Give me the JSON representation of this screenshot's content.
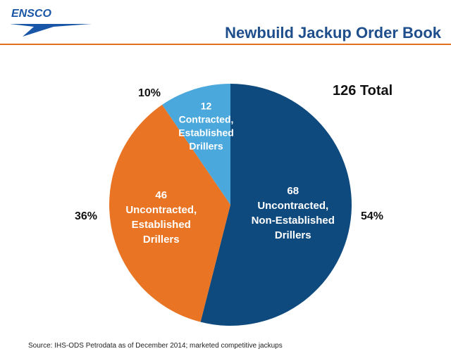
{
  "header": {
    "logo_text": "ENSCO",
    "title": "Newbuild Jackup Order Book"
  },
  "colors": {
    "accent_orange": "#e07020",
    "title_blue": "#1f4e8c",
    "logo_blue": "#1a56a8"
  },
  "chart_data": {
    "type": "pie",
    "title": "Newbuild Jackup Order Book",
    "total_label": "126 Total",
    "total": 126,
    "slices": [
      {
        "value": 68,
        "value_label": "68",
        "label_lines": [
          "Uncontracted,",
          "Non-Established",
          "Drillers"
        ],
        "percent_label": "54%",
        "color": "#0e4a7e"
      },
      {
        "value": 46,
        "value_label": "46",
        "label_lines": [
          "Uncontracted,",
          "Established",
          "Drillers"
        ],
        "percent_label": "36%",
        "color": "#e87424"
      },
      {
        "value": 12,
        "value_label": "12",
        "label_lines": [
          "Contracted,",
          "Established",
          "Drillers"
        ],
        "percent_label": "10%",
        "color": "#4aa8dc"
      }
    ]
  },
  "footer": {
    "source": "Source: IHS-ODS Petrodata as of December 2014; marketed competitive jackups"
  }
}
